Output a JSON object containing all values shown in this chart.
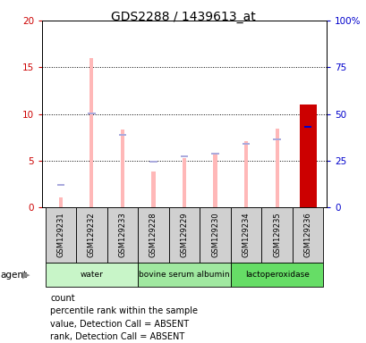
{
  "title": "GDS2288 / 1439613_at",
  "samples": [
    "GSM129231",
    "GSM129232",
    "GSM129233",
    "GSM129228",
    "GSM129229",
    "GSM129230",
    "GSM129234",
    "GSM129235",
    "GSM129236"
  ],
  "value_absent": [
    1.1,
    16.0,
    8.3,
    3.9,
    5.3,
    5.7,
    7.1,
    8.4,
    null
  ],
  "rank_absent": [
    2.4,
    10.1,
    7.8,
    4.9,
    5.5,
    5.8,
    6.8,
    7.3,
    null
  ],
  "count": [
    null,
    null,
    null,
    null,
    null,
    null,
    null,
    null,
    11.0
  ],
  "percentile_rank": [
    null,
    null,
    null,
    null,
    null,
    null,
    null,
    null,
    8.6
  ],
  "agent_groups": [
    {
      "label": "water",
      "start": 0,
      "end": 3
    },
    {
      "label": "bovine serum albumin",
      "start": 3,
      "end": 6
    },
    {
      "label": "lactoperoxidase",
      "start": 6,
      "end": 9
    }
  ],
  "group_colors": [
    "#c8f5c8",
    "#a0e8a0",
    "#66dd66"
  ],
  "ylim_left": [
    0,
    20
  ],
  "ylim_right": [
    0,
    100
  ],
  "yticks_left": [
    0,
    5,
    10,
    15,
    20
  ],
  "yticks_right": [
    0,
    25,
    50,
    75,
    100
  ],
  "ytick_labels_right": [
    "0",
    "25",
    "50",
    "75",
    "100%"
  ],
  "left_tick_color": "#cc0000",
  "right_tick_color": "#0000cc",
  "pink_bar_width": 0.12,
  "blue_square_size": 0.25,
  "red_bar_width": 0.55,
  "value_absent_color": "#ffb8b8",
  "rank_absent_color": "#aaaadd",
  "count_color": "#cc0000",
  "percentile_color": "#0000cc",
  "sample_box_color": "#d0d0d0",
  "legend_items": [
    {
      "color": "#cc0000",
      "label": "count"
    },
    {
      "color": "#0000cc",
      "label": "percentile rank within the sample"
    },
    {
      "color": "#ffb8b8",
      "label": "value, Detection Call = ABSENT"
    },
    {
      "color": "#aaaadd",
      "label": "rank, Detection Call = ABSENT"
    }
  ]
}
